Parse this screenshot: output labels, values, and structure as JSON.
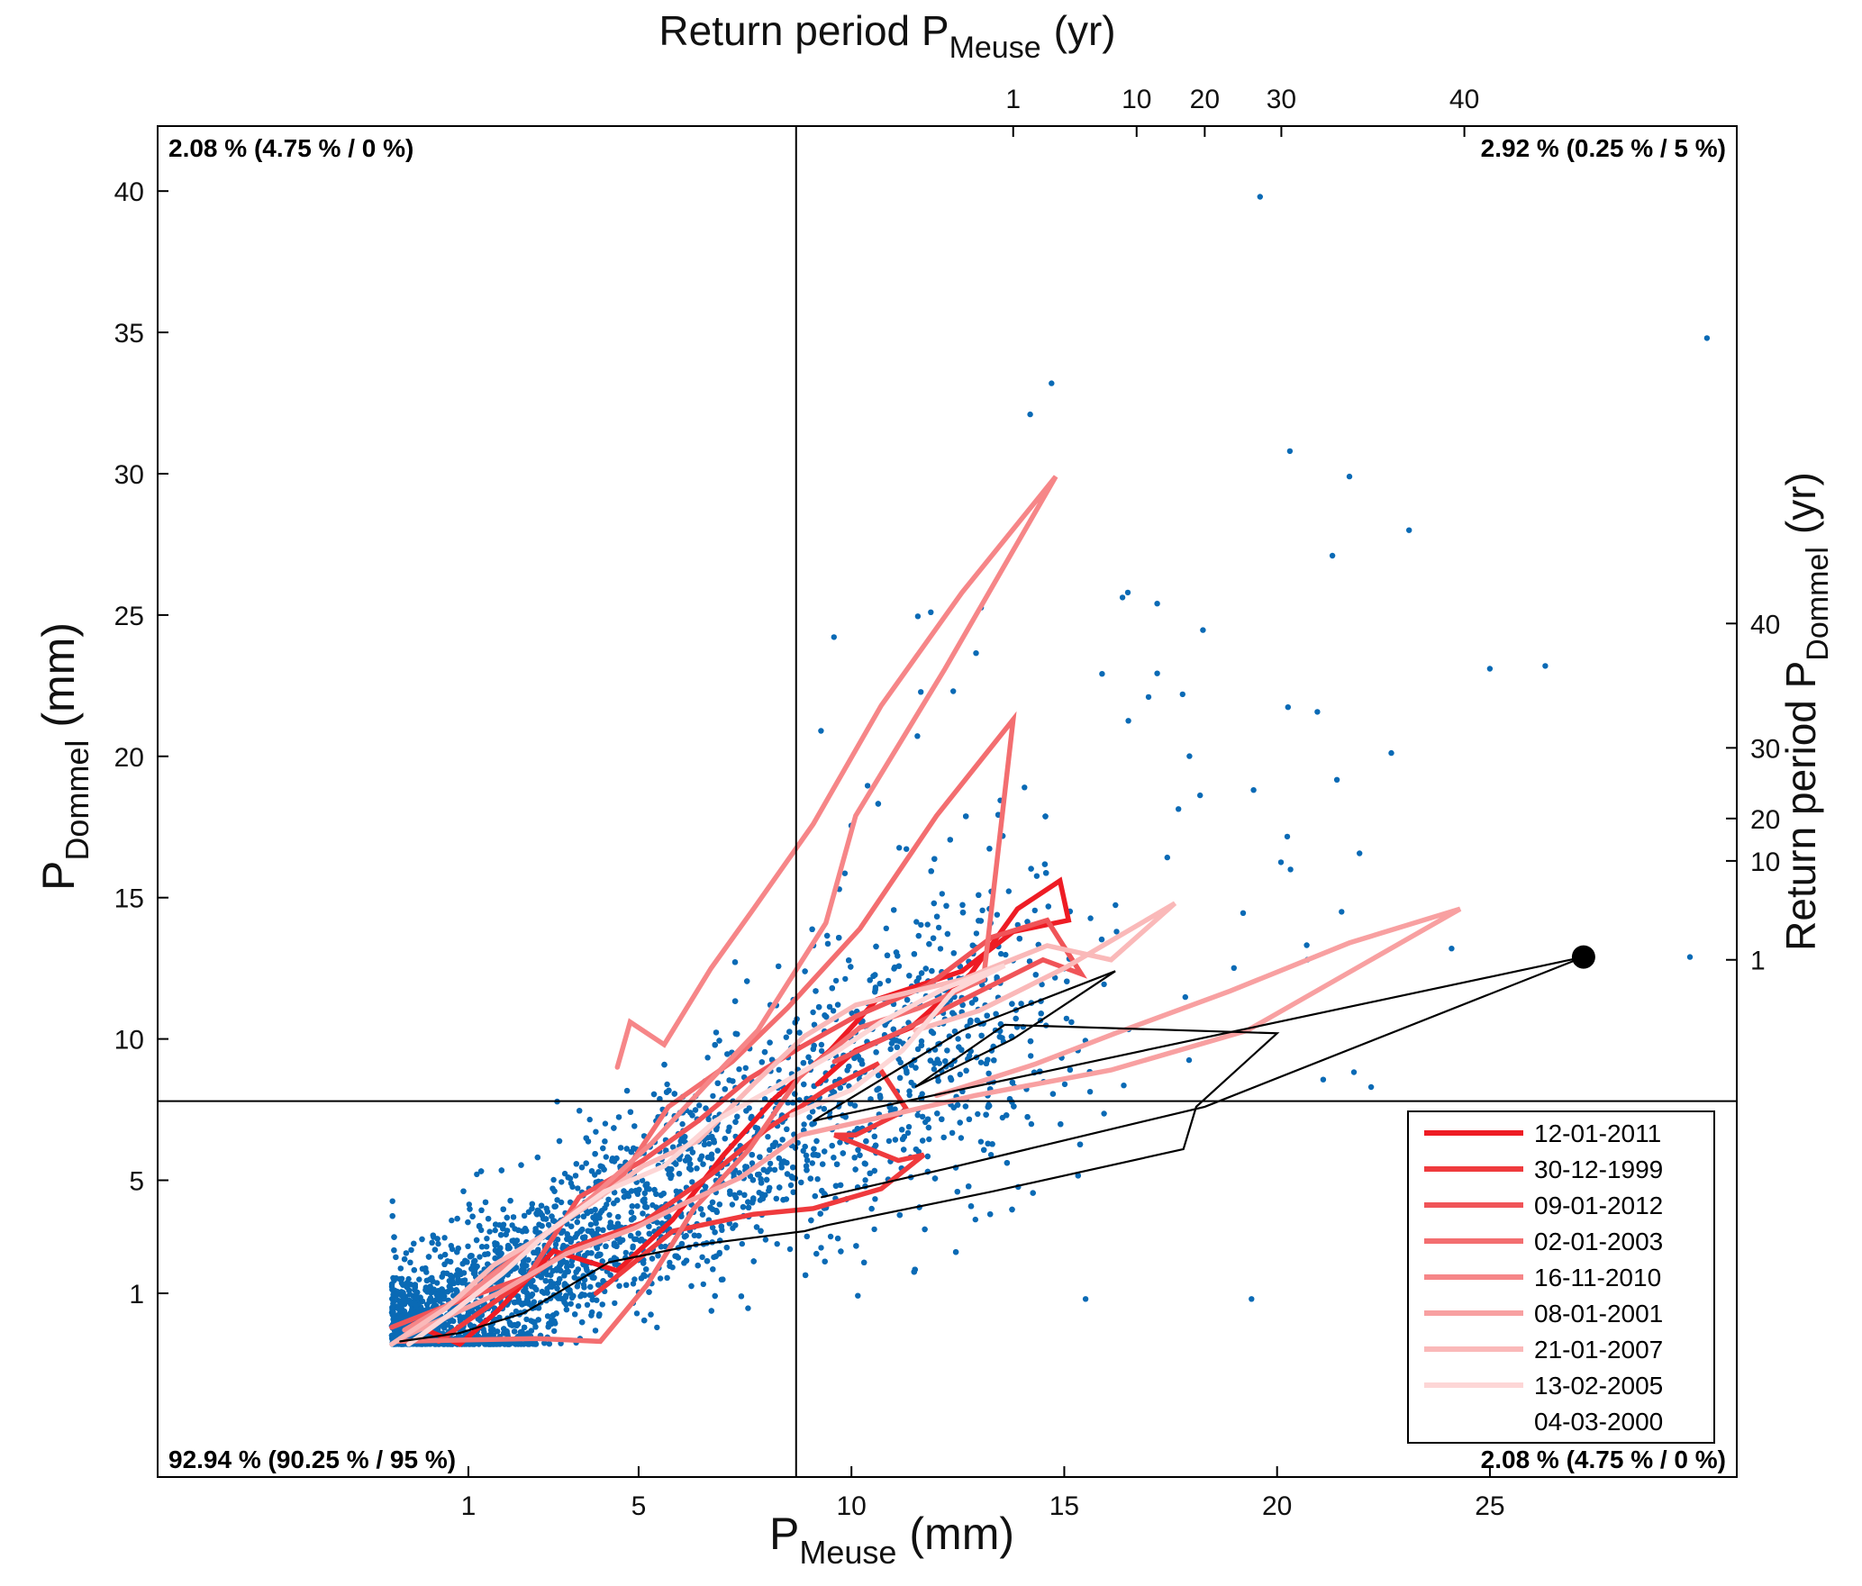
{
  "chart_data": {
    "type": "scatter",
    "title": "Return period P_Meuse (yr)",
    "title_top": {
      "main": "Return period P",
      "sub": "Meuse",
      "unit": "(yr)"
    },
    "xlabel": {
      "main": "P",
      "sub": "Meuse",
      "unit": "(mm)"
    },
    "ylabel": {
      "main": "P",
      "sub": "Dommel",
      "unit": "(mm)"
    },
    "ylabel_right": {
      "main": "Return period P",
      "sub": "Dommel",
      "unit": "(yr)"
    },
    "x_ticks": [
      1,
      5,
      10,
      15,
      20,
      25
    ],
    "y_ticks": [
      1,
      5,
      10,
      15,
      20,
      25,
      30,
      35,
      40
    ],
    "top_ticks": [
      {
        "label": "1",
        "at_x": 13.8
      },
      {
        "label": "10",
        "at_x": 16.7
      },
      {
        "label": "20",
        "at_x": 18.3
      },
      {
        "label": "30",
        "at_x": 20.1
      },
      {
        "label": "40",
        "at_x": 24.4
      }
    ],
    "right_ticks": [
      {
        "label": "1",
        "at_y": 12.8
      },
      {
        "label": "10",
        "at_y": 16.3
      },
      {
        "label": "20",
        "at_y": 17.8
      },
      {
        "label": "30",
        "at_y": 20.3
      },
      {
        "label": "40",
        "at_y": 24.7
      }
    ],
    "xlim": [
      -6.3,
      30.8
    ],
    "ylim": [
      -5.5,
      42.3
    ],
    "threshold_x": 8.7,
    "threshold_y": 7.8,
    "quadrant_labels": {
      "top_left": "2.08 % (4.75 % / 0 %)",
      "top_right": "2.92 % (0.25 % / 5 %)",
      "bottom_left": "92.94 % (90.25 % / 95 %)",
      "bottom_right": "2.08 % (4.75 % / 0 %)"
    },
    "scatter_color": "#0a6ab5",
    "highlight_point": {
      "x": 27.2,
      "y": 12.9
    },
    "legend": {
      "position": "bottom-right",
      "entries": [
        {
          "label": "12-01-2011",
          "color": "#ee1c24"
        },
        {
          "label": "30-12-1999",
          "color": "#ef3a3d"
        },
        {
          "label": "09-01-2012",
          "color": "#f05458"
        },
        {
          "label": "02-01-2003",
          "color": "#f36e70"
        },
        {
          "label": "16-11-2010",
          "color": "#f68688"
        },
        {
          "label": "08-01-2001",
          "color": "#f8a0a1"
        },
        {
          "label": "21-01-2007",
          "color": "#fab9b9"
        },
        {
          "label": "13-02-2005",
          "color": "#fdd6d6"
        },
        {
          "label": "04-03-2000",
          "color": "#000000"
        }
      ]
    },
    "series": [
      {
        "name": "12-01-2011",
        "color": "#ee1c24",
        "points": [
          [
            -0.3,
            -0.1
          ],
          [
            0.8,
            -0.8
          ],
          [
            1.7,
            0.4
          ],
          [
            3.0,
            2.5
          ],
          [
            4.5,
            1.8
          ],
          [
            5.8,
            3.6
          ],
          [
            7.0,
            5.9
          ],
          [
            8.2,
            7.9
          ],
          [
            9.5,
            9.6
          ],
          [
            10.6,
            11.4
          ],
          [
            12.6,
            12.4
          ],
          [
            13.8,
            13.8
          ],
          [
            15.1,
            14.2
          ],
          [
            14.9,
            15.6
          ],
          [
            13.9,
            14.6
          ],
          [
            12.8,
            12.3
          ],
          [
            11.4,
            10.4
          ],
          [
            10.1,
            9.6
          ],
          [
            9.2,
            8.4
          ]
        ]
      },
      {
        "name": "30-12-1999",
        "color": "#ef3a3d",
        "points": [
          [
            0.3,
            -0.7
          ],
          [
            1.9,
            1.0
          ],
          [
            3.4,
            2.6
          ],
          [
            5.1,
            3.5
          ],
          [
            6.7,
            5.2
          ],
          [
            8.0,
            6.8
          ],
          [
            9.4,
            8.2
          ],
          [
            10.6,
            9.1
          ],
          [
            11.3,
            7.5
          ],
          [
            10.1,
            6.6
          ],
          [
            9.6,
            6.6
          ],
          [
            11.1,
            5.7
          ],
          [
            11.7,
            5.9
          ],
          [
            10.7,
            4.7
          ],
          [
            9.1,
            4.0
          ],
          [
            7.7,
            3.8
          ],
          [
            5.8,
            3.2
          ],
          [
            4.0,
            1.0
          ]
        ]
      },
      {
        "name": "09-01-2012",
        "color": "#f05458",
        "points": [
          [
            -0.8,
            -0.2
          ],
          [
            0.9,
            0.8
          ],
          [
            2.4,
            1.6
          ],
          [
            3.6,
            4.4
          ],
          [
            5.1,
            5.7
          ],
          [
            6.4,
            7.1
          ],
          [
            7.6,
            8.6
          ],
          [
            8.8,
            9.7
          ],
          [
            10.1,
            10.8
          ],
          [
            11.8,
            11.9
          ],
          [
            13.3,
            13.6
          ],
          [
            14.6,
            14.2
          ],
          [
            15.4,
            12.3
          ],
          [
            14.5,
            12.8
          ],
          [
            12.9,
            11.6
          ],
          [
            11.2,
            10.3
          ],
          [
            9.6,
            9.2
          ]
        ]
      },
      {
        "name": "02-01-2003",
        "color": "#f36e70",
        "points": [
          [
            -0.7,
            -0.7
          ],
          [
            2.6,
            -0.6
          ],
          [
            4.1,
            -0.7
          ],
          [
            5.2,
            1.3
          ],
          [
            6.3,
            4.0
          ],
          [
            7.6,
            6.1
          ],
          [
            8.8,
            8.7
          ],
          [
            10.2,
            10.4
          ],
          [
            11.6,
            11.1
          ],
          [
            13.1,
            12.1
          ],
          [
            13.8,
            21.3
          ],
          [
            12.0,
            17.9
          ],
          [
            10.2,
            13.9
          ],
          [
            8.5,
            11.1
          ],
          [
            7.2,
            9.2
          ],
          [
            5.7,
            7.6
          ],
          [
            4.6,
            5.1
          ],
          [
            3.1,
            3.4
          ],
          [
            1.4,
            1.5
          ]
        ]
      },
      {
        "name": "16-11-2010",
        "color": "#f68688",
        "points": [
          [
            -0.5,
            -0.3
          ],
          [
            1.1,
            1.1
          ],
          [
            2.5,
            2.7
          ],
          [
            3.9,
            4.4
          ],
          [
            5.3,
            6.3
          ],
          [
            6.6,
            8.4
          ],
          [
            7.8,
            10.3
          ],
          [
            9.4,
            14.1
          ],
          [
            10.1,
            17.9
          ],
          [
            12.2,
            23.1
          ],
          [
            14.8,
            29.9
          ],
          [
            12.6,
            25.8
          ],
          [
            10.7,
            21.8
          ],
          [
            9.1,
            17.6
          ],
          [
            7.7,
            14.6
          ],
          [
            6.7,
            12.5
          ],
          [
            5.6,
            9.8
          ],
          [
            4.8,
            10.6
          ],
          [
            4.5,
            9.0
          ]
        ]
      },
      {
        "name": "08-01-2001",
        "color": "#f8a0a1",
        "points": [
          [
            -0.6,
            -0.6
          ],
          [
            1.7,
            1.0
          ],
          [
            3.3,
            2.4
          ],
          [
            4.9,
            3.3
          ],
          [
            6.1,
            4.2
          ],
          [
            7.4,
            5.1
          ],
          [
            8.8,
            6.6
          ],
          [
            10.6,
            7.2
          ],
          [
            12.9,
            8.0
          ],
          [
            16.1,
            8.9
          ],
          [
            19.3,
            10.3
          ],
          [
            24.3,
            14.6
          ],
          [
            21.7,
            13.4
          ],
          [
            18.9,
            11.7
          ],
          [
            16.2,
            10.2
          ],
          [
            14.3,
            9.1
          ],
          [
            12.0,
            8.0
          ]
        ]
      },
      {
        "name": "21-01-2007",
        "color": "#fab9b9",
        "points": [
          [
            -0.8,
            -0.8
          ],
          [
            0.5,
            0.5
          ],
          [
            1.6,
            2.0
          ],
          [
            2.7,
            3.0
          ],
          [
            3.9,
            4.2
          ],
          [
            5.1,
            5.5
          ],
          [
            6.4,
            6.4
          ],
          [
            7.7,
            8.4
          ],
          [
            8.9,
            10.1
          ],
          [
            10.1,
            11.2
          ],
          [
            12.6,
            12.1
          ],
          [
            14.6,
            13.3
          ],
          [
            16.1,
            12.8
          ],
          [
            17.6,
            14.8
          ],
          [
            15.0,
            12.5
          ],
          [
            13.0,
            11.0
          ],
          [
            11.5,
            10.3
          ]
        ]
      },
      {
        "name": "13-02-2005",
        "color": "#fdd6d6",
        "points": [
          [
            -0.4,
            -0.8
          ],
          [
            0.6,
            0.3
          ],
          [
            1.8,
            1.7
          ],
          [
            2.9,
            3.2
          ],
          [
            4.2,
            4.6
          ],
          [
            5.6,
            5.5
          ],
          [
            6.8,
            7.1
          ],
          [
            8.1,
            8.2
          ],
          [
            9.5,
            9.4
          ],
          [
            10.7,
            10.6
          ],
          [
            12.2,
            11.8
          ],
          [
            13.6,
            12.6
          ],
          [
            12.4,
            11.7
          ],
          [
            11.2,
            9.6
          ],
          [
            10.0,
            8.2
          ],
          [
            8.6,
            7.3
          ]
        ]
      },
      {
        "name": "04-03-2000",
        "color": "#000000",
        "points": [
          [
            -0.6,
            -0.7
          ],
          [
            0.8,
            -0.4
          ],
          [
            2.3,
            0.3
          ],
          [
            4.3,
            2.1
          ],
          [
            6.3,
            2.7
          ],
          [
            8.9,
            3.2
          ],
          [
            9.4,
            3.4
          ],
          [
            13.3,
            4.6
          ],
          [
            17.8,
            6.1
          ],
          [
            18.1,
            7.6
          ],
          [
            20.0,
            10.2
          ],
          [
            13.6,
            10.5
          ],
          [
            11.5,
            8.3
          ],
          [
            13.8,
            10.0
          ],
          [
            16.2,
            12.4
          ],
          [
            12.6,
            10.3
          ],
          [
            9.1,
            7.1
          ],
          [
            27.2,
            12.9
          ],
          [
            18.3,
            7.6
          ],
          [
            12.2,
            5.4
          ],
          [
            9.3,
            4.4
          ]
        ]
      }
    ]
  }
}
